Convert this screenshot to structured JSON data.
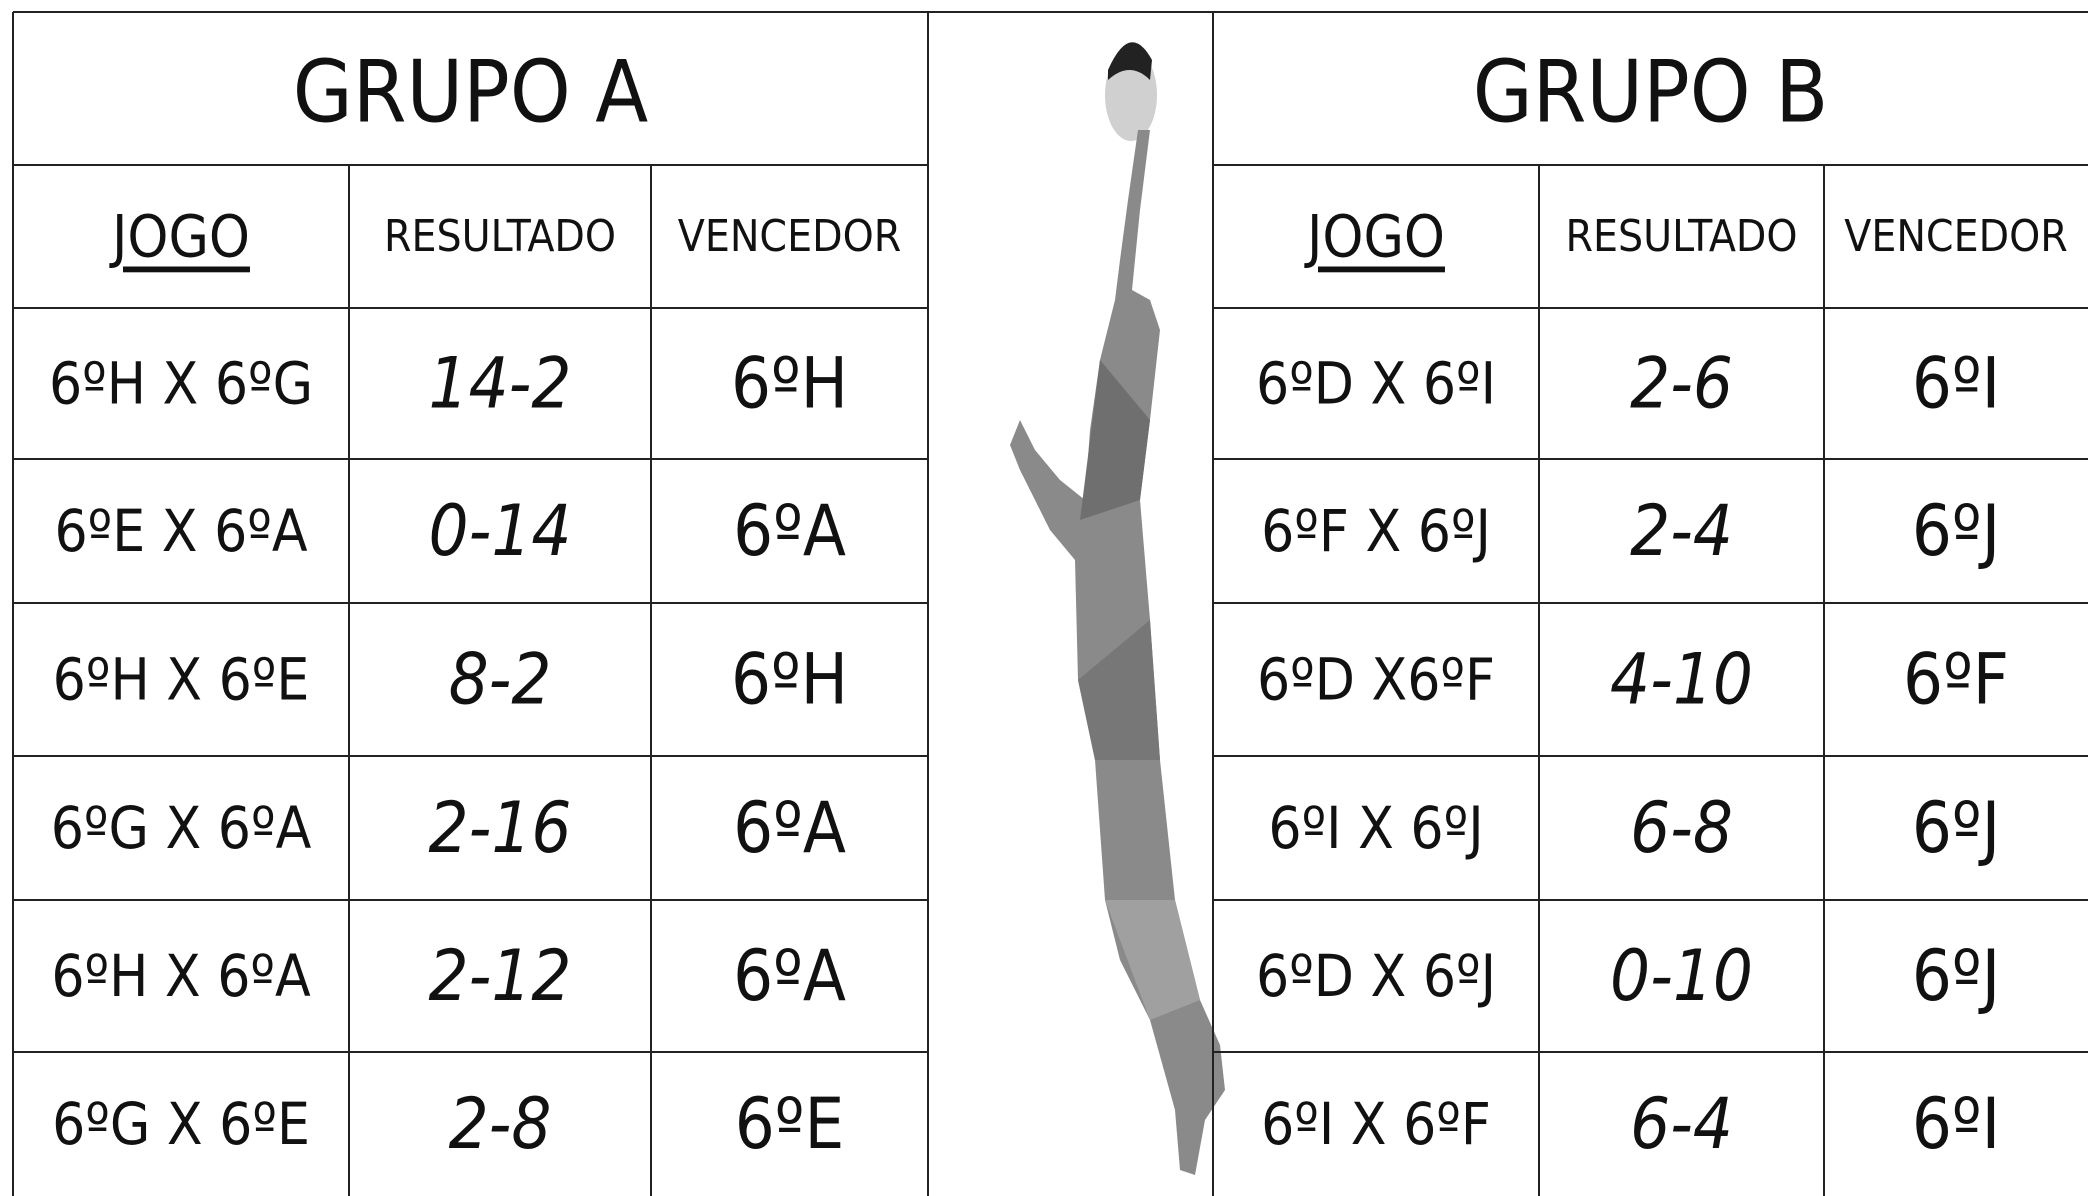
{
  "groups": [
    {
      "title": "GRUPO A",
      "headers": [
        "JOGO",
        "RESULTADO",
        "VENCEDOR"
      ],
      "rows": [
        [
          "6ºH X 6ºG",
          "14-2",
          "6ºH"
        ],
        [
          "6ºE X 6ºA",
          "0-14",
          "6ºA"
        ],
        [
          "6ºH X 6ºE",
          "8-2",
          "6ºH"
        ],
        [
          "6ºG X 6ºA",
          "2-16",
          "6ºA"
        ],
        [
          "6ºH X 6ºA",
          "2-12",
          "6ºA"
        ],
        [
          "6ºG X 6ºE",
          "2-8",
          "6ºE"
        ]
      ]
    },
    {
      "title": "GRUPO B",
      "headers": [
        "JOGO",
        "RESULTADO",
        "VENCEDOR"
      ],
      "rows": [
        [
          "6ºD X 6ºI",
          "2-6",
          "6ºI"
        ],
        [
          "6ºF X 6ºJ",
          "2-4",
          "6ºJ"
        ],
        [
          "6ºD X6ºF",
          "4-10",
          "6ºF"
        ],
        [
          "6ºI X 6ºJ",
          "6-8",
          "6ºJ"
        ],
        [
          "6ºD X 6ºJ",
          "0-10",
          "6ºJ"
        ],
        [
          "6ºI X 6ºF",
          "6-4",
          "6ºI"
        ]
      ]
    }
  ]
}
